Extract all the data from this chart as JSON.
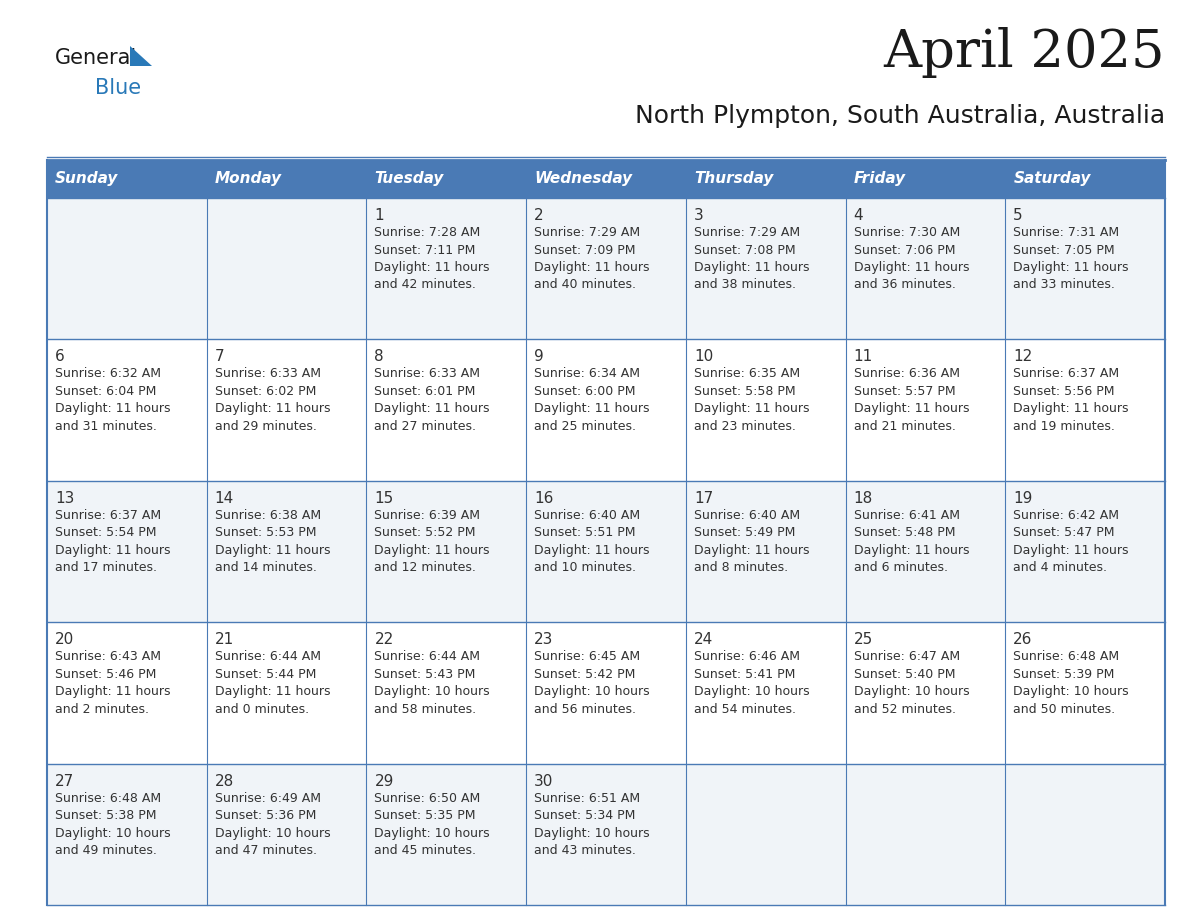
{
  "title": "April 2025",
  "subtitle": "North Plympton, South Australia, Australia",
  "days_of_week": [
    "Sunday",
    "Monday",
    "Tuesday",
    "Wednesday",
    "Thursday",
    "Friday",
    "Saturday"
  ],
  "header_bg": "#4a7ab5",
  "header_text": "#FFFFFF",
  "row_bg_odd": "#f0f4f8",
  "row_bg_even": "#FFFFFF",
  "border_color": "#4a7ab5",
  "text_color": "#333333",
  "title_color": "#1a1a1a",
  "logo_text_color": "#1a1a1a",
  "logo_blue_color": "#2979b8",
  "calendar_data": [
    [
      {
        "day": "",
        "info": ""
      },
      {
        "day": "",
        "info": ""
      },
      {
        "day": "1",
        "info": "Sunrise: 7:28 AM\nSunset: 7:11 PM\nDaylight: 11 hours\nand 42 minutes."
      },
      {
        "day": "2",
        "info": "Sunrise: 7:29 AM\nSunset: 7:09 PM\nDaylight: 11 hours\nand 40 minutes."
      },
      {
        "day": "3",
        "info": "Sunrise: 7:29 AM\nSunset: 7:08 PM\nDaylight: 11 hours\nand 38 minutes."
      },
      {
        "day": "4",
        "info": "Sunrise: 7:30 AM\nSunset: 7:06 PM\nDaylight: 11 hours\nand 36 minutes."
      },
      {
        "day": "5",
        "info": "Sunrise: 7:31 AM\nSunset: 7:05 PM\nDaylight: 11 hours\nand 33 minutes."
      }
    ],
    [
      {
        "day": "6",
        "info": "Sunrise: 6:32 AM\nSunset: 6:04 PM\nDaylight: 11 hours\nand 31 minutes."
      },
      {
        "day": "7",
        "info": "Sunrise: 6:33 AM\nSunset: 6:02 PM\nDaylight: 11 hours\nand 29 minutes."
      },
      {
        "day": "8",
        "info": "Sunrise: 6:33 AM\nSunset: 6:01 PM\nDaylight: 11 hours\nand 27 minutes."
      },
      {
        "day": "9",
        "info": "Sunrise: 6:34 AM\nSunset: 6:00 PM\nDaylight: 11 hours\nand 25 minutes."
      },
      {
        "day": "10",
        "info": "Sunrise: 6:35 AM\nSunset: 5:58 PM\nDaylight: 11 hours\nand 23 minutes."
      },
      {
        "day": "11",
        "info": "Sunrise: 6:36 AM\nSunset: 5:57 PM\nDaylight: 11 hours\nand 21 minutes."
      },
      {
        "day": "12",
        "info": "Sunrise: 6:37 AM\nSunset: 5:56 PM\nDaylight: 11 hours\nand 19 minutes."
      }
    ],
    [
      {
        "day": "13",
        "info": "Sunrise: 6:37 AM\nSunset: 5:54 PM\nDaylight: 11 hours\nand 17 minutes."
      },
      {
        "day": "14",
        "info": "Sunrise: 6:38 AM\nSunset: 5:53 PM\nDaylight: 11 hours\nand 14 minutes."
      },
      {
        "day": "15",
        "info": "Sunrise: 6:39 AM\nSunset: 5:52 PM\nDaylight: 11 hours\nand 12 minutes."
      },
      {
        "day": "16",
        "info": "Sunrise: 6:40 AM\nSunset: 5:51 PM\nDaylight: 11 hours\nand 10 minutes."
      },
      {
        "day": "17",
        "info": "Sunrise: 6:40 AM\nSunset: 5:49 PM\nDaylight: 11 hours\nand 8 minutes."
      },
      {
        "day": "18",
        "info": "Sunrise: 6:41 AM\nSunset: 5:48 PM\nDaylight: 11 hours\nand 6 minutes."
      },
      {
        "day": "19",
        "info": "Sunrise: 6:42 AM\nSunset: 5:47 PM\nDaylight: 11 hours\nand 4 minutes."
      }
    ],
    [
      {
        "day": "20",
        "info": "Sunrise: 6:43 AM\nSunset: 5:46 PM\nDaylight: 11 hours\nand 2 minutes."
      },
      {
        "day": "21",
        "info": "Sunrise: 6:44 AM\nSunset: 5:44 PM\nDaylight: 11 hours\nand 0 minutes."
      },
      {
        "day": "22",
        "info": "Sunrise: 6:44 AM\nSunset: 5:43 PM\nDaylight: 10 hours\nand 58 minutes."
      },
      {
        "day": "23",
        "info": "Sunrise: 6:45 AM\nSunset: 5:42 PM\nDaylight: 10 hours\nand 56 minutes."
      },
      {
        "day": "24",
        "info": "Sunrise: 6:46 AM\nSunset: 5:41 PM\nDaylight: 10 hours\nand 54 minutes."
      },
      {
        "day": "25",
        "info": "Sunrise: 6:47 AM\nSunset: 5:40 PM\nDaylight: 10 hours\nand 52 minutes."
      },
      {
        "day": "26",
        "info": "Sunrise: 6:48 AM\nSunset: 5:39 PM\nDaylight: 10 hours\nand 50 minutes."
      }
    ],
    [
      {
        "day": "27",
        "info": "Sunrise: 6:48 AM\nSunset: 5:38 PM\nDaylight: 10 hours\nand 49 minutes."
      },
      {
        "day": "28",
        "info": "Sunrise: 6:49 AM\nSunset: 5:36 PM\nDaylight: 10 hours\nand 47 minutes."
      },
      {
        "day": "29",
        "info": "Sunrise: 6:50 AM\nSunset: 5:35 PM\nDaylight: 10 hours\nand 45 minutes."
      },
      {
        "day": "30",
        "info": "Sunrise: 6:51 AM\nSunset: 5:34 PM\nDaylight: 10 hours\nand 43 minutes."
      },
      {
        "day": "",
        "info": ""
      },
      {
        "day": "",
        "info": ""
      },
      {
        "day": "",
        "info": ""
      }
    ]
  ]
}
